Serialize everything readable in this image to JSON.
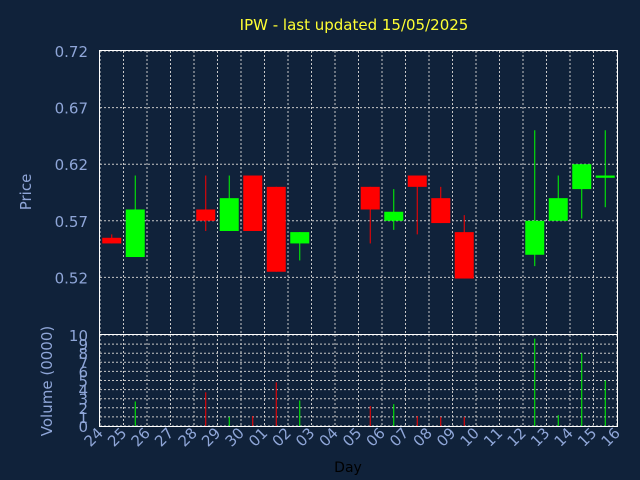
{
  "chart_data": {
    "type": "candlestick",
    "title": "IPW - last updated 15/05/2025",
    "xlabel": "Day",
    "price_axis": {
      "label": "Price",
      "ylim": [
        0.47,
        0.72
      ],
      "ticks": [
        "0.72",
        "0.67",
        "0.62",
        "0.57",
        "0.52"
      ],
      "tick_values": [
        0.72,
        0.67,
        0.62,
        0.57,
        0.52
      ]
    },
    "volume_axis": {
      "label": "Volume (0000)",
      "ylim": [
        0,
        10
      ],
      "ticks": [
        "10",
        "9",
        "8",
        "7",
        "6",
        "5",
        "4",
        "3",
        "2",
        "1",
        "0"
      ],
      "tick_values": [
        10,
        9,
        8,
        7,
        6,
        5,
        4,
        3,
        2,
        1,
        0
      ]
    },
    "x_tick_labels": [
      "24",
      "25",
      "26",
      "27",
      "28",
      "29",
      "30",
      "01",
      "02",
      "03",
      "04",
      "05",
      "06",
      "07",
      "08",
      "09",
      "10",
      "11",
      "12",
      "13",
      "14",
      "15",
      "16"
    ],
    "grid": true,
    "colors": {
      "up": "#00ff00",
      "down": "#ff0000",
      "grid": "#c8c8c8",
      "title": "#ffff33",
      "axis_text": "#8fa6d8",
      "background": "#10223a"
    },
    "series": [
      {
        "day": "24",
        "open": 0.555,
        "high": 0.558,
        "low": 0.55,
        "close": 0.55,
        "volume": 0.0
      },
      {
        "day": "25",
        "open": 0.538,
        "high": 0.61,
        "low": 0.538,
        "close": 0.58,
        "volume": 2.7
      },
      {
        "day": "28",
        "open": 0.58,
        "high": 0.61,
        "low": 0.561,
        "close": 0.57,
        "volume": 3.7
      },
      {
        "day": "29",
        "open": 0.561,
        "high": 0.61,
        "low": 0.561,
        "close": 0.59,
        "volume": 1.0
      },
      {
        "day": "30",
        "open": 0.61,
        "high": 0.61,
        "low": 0.561,
        "close": 0.561,
        "volume": 1.1
      },
      {
        "day": "01",
        "open": 0.6,
        "high": 0.6,
        "low": 0.525,
        "close": 0.525,
        "volume": 4.8
      },
      {
        "day": "02",
        "open": 0.55,
        "high": 0.56,
        "low": 0.535,
        "close": 0.56,
        "volume": 2.8
      },
      {
        "day": "05",
        "open": 0.6,
        "high": 0.6,
        "low": 0.55,
        "close": 0.58,
        "volume": 2.2
      },
      {
        "day": "06",
        "open": 0.57,
        "high": 0.598,
        "low": 0.562,
        "close": 0.578,
        "volume": 2.4
      },
      {
        "day": "07",
        "open": 0.61,
        "high": 0.61,
        "low": 0.558,
        "close": 0.6,
        "volume": 1.1
      },
      {
        "day": "08",
        "open": 0.59,
        "high": 0.6,
        "low": 0.568,
        "close": 0.568,
        "volume": 1.0
      },
      {
        "day": "09",
        "open": 0.56,
        "high": 0.575,
        "low": 0.519,
        "close": 0.519,
        "volume": 1.0
      },
      {
        "day": "12",
        "open": 0.54,
        "high": 0.65,
        "low": 0.53,
        "close": 0.57,
        "volume": 9.6
      },
      {
        "day": "13",
        "open": 0.57,
        "high": 0.61,
        "low": 0.57,
        "close": 0.59,
        "volume": 1.2
      },
      {
        "day": "14",
        "open": 0.598,
        "high": 0.62,
        "low": 0.572,
        "close": 0.62,
        "volume": 8.0
      },
      {
        "day": "15",
        "open": 0.608,
        "high": 0.65,
        "low": 0.582,
        "close": 0.61,
        "volume": 5.0
      }
    ]
  }
}
